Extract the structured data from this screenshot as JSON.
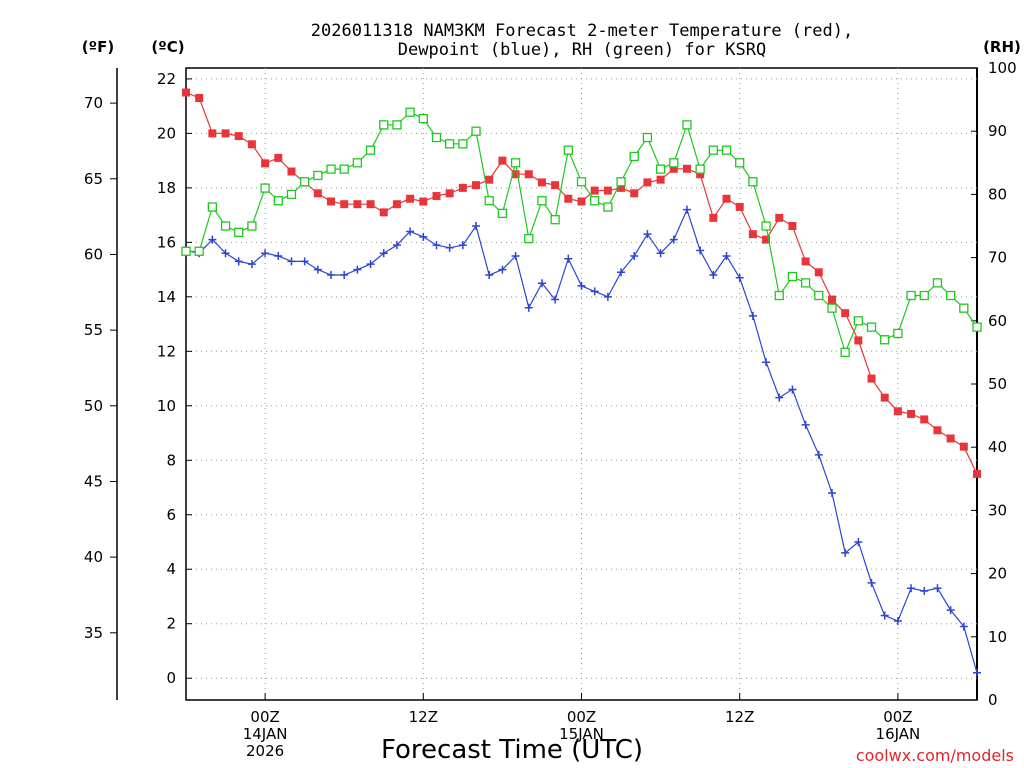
{
  "title_line1": "2026011318 NAM3KM Forecast 2-meter Temperature (red),",
  "title_line2": "Dewpoint (blue), RH (green) for KSRQ",
  "axis_units": {
    "fahrenheit": "(ºF)",
    "celsius": "(ºC)",
    "rh": "(RH)"
  },
  "xlabel": "Forecast Time (UTC)",
  "credit": "coolwx.com/models",
  "colors": {
    "temperature": "#e8353a",
    "dewpoint": "#2b45d6",
    "rh": "#1ec81e",
    "credit": "#e0252c",
    "grid": "#999999"
  },
  "chart_data": {
    "type": "line",
    "x_hours_from_start": [
      0,
      1,
      2,
      3,
      4,
      5,
      6,
      7,
      8,
      9,
      10,
      11,
      12,
      13,
      14,
      15,
      16,
      17,
      18,
      19,
      20,
      21,
      22,
      23,
      24,
      25,
      26,
      27,
      28,
      29,
      30,
      31,
      32,
      33,
      34,
      35,
      36,
      37,
      38,
      39,
      40,
      41,
      42,
      43,
      44,
      45,
      46,
      47,
      48,
      49,
      50,
      51,
      52,
      53,
      54,
      55,
      56,
      57,
      58,
      59,
      60
    ],
    "xlim": [
      0,
      60
    ],
    "x_ticks": [
      {
        "hour": 6,
        "labels": [
          "00Z",
          "14JAN",
          "2026"
        ]
      },
      {
        "hour": 18,
        "labels": [
          "12Z"
        ]
      },
      {
        "hour": 30,
        "labels": [
          "00Z",
          "15JAN"
        ]
      },
      {
        "hour": 42,
        "labels": [
          "12Z"
        ]
      },
      {
        "hour": 54,
        "labels": [
          "00Z",
          "16JAN"
        ]
      }
    ],
    "y_celsius": {
      "range": [
        -0.8,
        22.4
      ],
      "ticks": [
        0,
        2,
        4,
        6,
        8,
        10,
        12,
        14,
        16,
        18,
        20,
        22
      ]
    },
    "y_fahrenheit": {
      "ticks": [
        35,
        40,
        45,
        50,
        55,
        60,
        65,
        70
      ]
    },
    "y_rh": {
      "range": [
        0,
        100
      ],
      "ticks": [
        0,
        10,
        20,
        30,
        40,
        50,
        60,
        70,
        80,
        90,
        100
      ]
    },
    "series": [
      {
        "name": "Temperature",
        "unit": "C",
        "marker": "filled-square",
        "values": [
          21.5,
          21.3,
          20.0,
          20.0,
          19.9,
          19.6,
          18.9,
          19.1,
          18.6,
          18.2,
          17.8,
          17.5,
          17.4,
          17.4,
          17.4,
          17.1,
          17.4,
          17.6,
          17.5,
          17.7,
          17.8,
          18.0,
          18.1,
          18.3,
          19.0,
          18.5,
          18.5,
          18.2,
          18.1,
          17.6,
          17.5,
          17.9,
          17.9,
          18.0,
          17.8,
          18.2,
          18.3,
          18.7,
          18.7,
          18.5,
          16.9,
          17.6,
          17.3,
          16.3,
          16.1,
          16.9,
          16.6,
          15.3,
          14.9,
          13.9,
          13.4,
          12.4,
          11.0,
          10.3,
          9.8,
          9.7,
          9.5,
          9.1,
          8.8,
          8.5,
          7.5
        ]
      },
      {
        "name": "Dewpoint",
        "unit": "C",
        "marker": "plus",
        "values": [
          15.7,
          15.6,
          16.1,
          15.6,
          15.3,
          15.2,
          15.6,
          15.5,
          15.3,
          15.3,
          15.0,
          14.8,
          14.8,
          15.0,
          15.2,
          15.6,
          15.9,
          16.4,
          16.2,
          15.9,
          15.8,
          15.9,
          16.6,
          14.8,
          15.0,
          15.5,
          13.6,
          14.5,
          13.9,
          15.4,
          14.4,
          14.2,
          14.0,
          14.9,
          15.5,
          16.3,
          15.6,
          16.1,
          17.2,
          15.7,
          14.8,
          15.5,
          14.7,
          13.3,
          11.6,
          10.3,
          10.6,
          9.3,
          8.2,
          6.8,
          4.6,
          5.0,
          3.5,
          2.3,
          2.1,
          3.3,
          3.2,
          3.3,
          2.5,
          1.9,
          0.2
        ]
      },
      {
        "name": "RH",
        "unit": "%",
        "marker": "open-square",
        "values": [
          71,
          71,
          78,
          75,
          74,
          75,
          81,
          79,
          80,
          82,
          83,
          84,
          84,
          85,
          87,
          91,
          91,
          93,
          92,
          89,
          88,
          88,
          90,
          79,
          77,
          85,
          73,
          79,
          76,
          87,
          82,
          79,
          78,
          82,
          86,
          89,
          84,
          85,
          91,
          84,
          87,
          87,
          85,
          82,
          75,
          64,
          67,
          66,
          64,
          62,
          55,
          60,
          59,
          57,
          58,
          64,
          64,
          66,
          64,
          62,
          59
        ]
      }
    ]
  }
}
